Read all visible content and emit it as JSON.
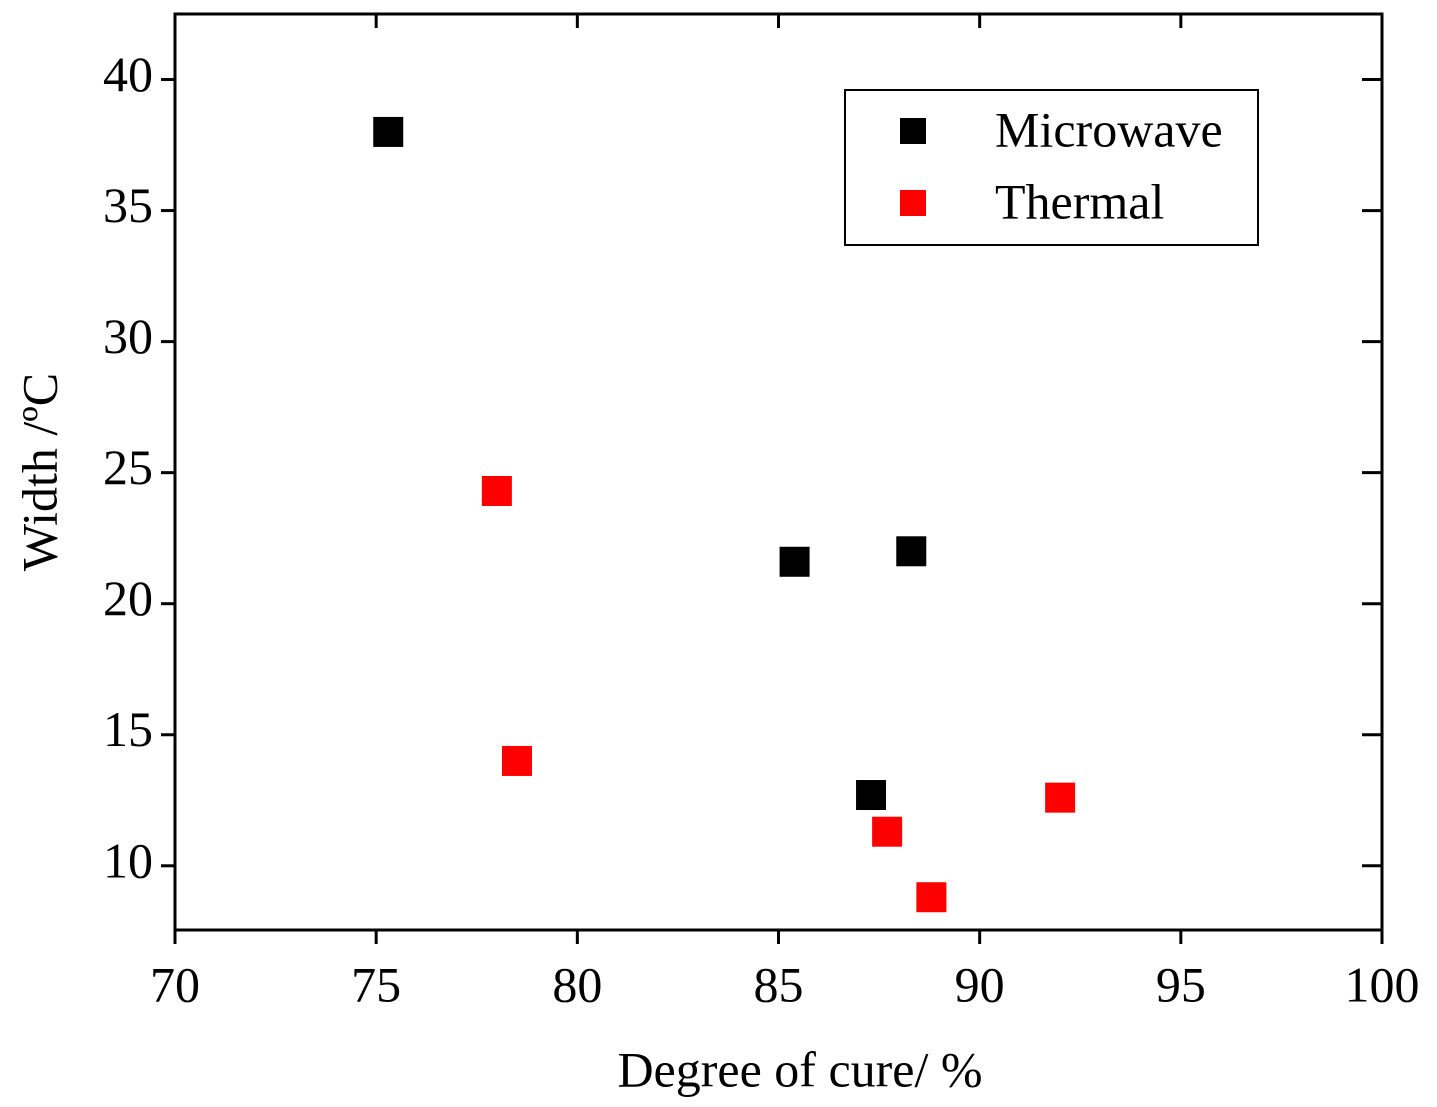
{
  "chart_data": {
    "type": "scatter",
    "x_label": "Degree of cure/ %",
    "y_label": "Width /ºC",
    "series": [
      {
        "name": "Microwave",
        "color": "#000000",
        "x": [
          75.3,
          85.4,
          88.3,
          87.3
        ],
        "values": [
          38.0,
          21.6,
          22.0,
          12.7
        ]
      },
      {
        "name": "Thermal",
        "color": "#ff0000",
        "x": [
          78.0,
          78.5,
          87.7,
          88.8,
          92.0
        ],
        "values": [
          24.3,
          14.0,
          11.3,
          8.8,
          12.6
        ]
      }
    ],
    "xlim": [
      70,
      100
    ],
    "xticks": [
      70,
      75,
      80,
      85,
      90,
      95,
      100
    ],
    "ylim": [
      7.55,
      42.5
    ],
    "yticks": [
      10,
      15,
      20,
      25,
      30,
      35,
      40
    ],
    "grid": false,
    "legend": "upper right"
  }
}
